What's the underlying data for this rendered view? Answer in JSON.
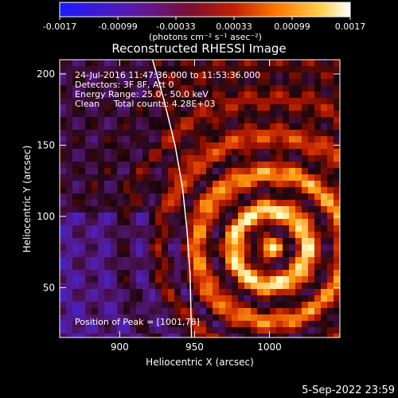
{
  "colorbar": {
    "ticks": [
      "-0.0017",
      "-0.00099",
      "-0.00033",
      "0.00033",
      "0.00099",
      "0.0017"
    ],
    "units": "(photons cm⁻² s⁻¹ asec⁻²)"
  },
  "title": "Reconstructed RHESSI Image",
  "info": {
    "time": "24-Jul-2016 11:47:36.000 to 11:53:36.000",
    "detectors": "Detectors: 3F 8F, Att 0",
    "energy": "Energy Range: 25.0 - 50.0 keV",
    "clean": "Clean     Total counts: 4.28E+03",
    "peak": "Position of Peak = [1001,78]"
  },
  "footer_date": "5-Sep-2022 23:59",
  "chart_data": {
    "type": "heatmap",
    "title": "Reconstructed RHESSI Image",
    "xlabel": "Heliocentric X (arcsec)",
    "ylabel": "Heliocentric Y (arcsec)",
    "xlim": [
      860,
      1047
    ],
    "ylim": [
      15,
      210
    ],
    "x_ticks": [
      900,
      950,
      1000
    ],
    "y_ticks": [
      50,
      100,
      150,
      200
    ],
    "colorbar_range": [
      -0.0017,
      0.0017
    ],
    "peak": [
      1001,
      78
    ],
    "limb": [
      [
        922,
        210
      ],
      [
        930,
        180
      ],
      [
        937,
        150
      ],
      [
        942,
        120
      ],
      [
        945,
        90
      ],
      [
        947,
        60
      ],
      [
        948,
        15
      ]
    ]
  }
}
